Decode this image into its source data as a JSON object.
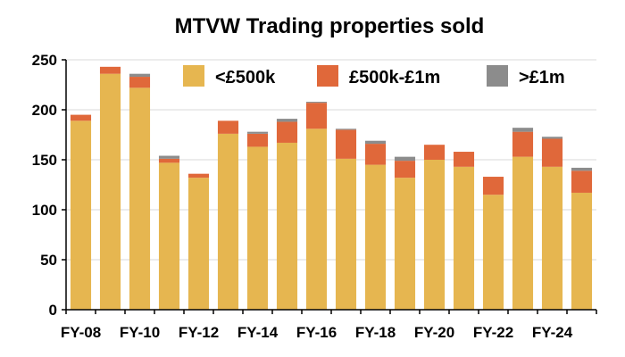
{
  "chart_data": {
    "type": "bar",
    "stacked": true,
    "title": "MTVW Trading properties sold",
    "xlabel": "",
    "ylabel": "",
    "ylim": [
      0,
      250
    ],
    "yticks": [
      0,
      50,
      100,
      150,
      200,
      250
    ],
    "grid": true,
    "legend_position": "top-right",
    "categories": [
      "FY-08",
      "FY-09",
      "FY-10",
      "FY-11",
      "FY-12",
      "FY-13",
      "FY-14",
      "FY-15",
      "FY-16",
      "FY-17",
      "FY-18",
      "FY-19",
      "FY-20",
      "FY-21",
      "FY-22",
      "FY-23",
      "FY-24",
      "FY-25"
    ],
    "xtick_labels": [
      "FY-08",
      "FY-10",
      "FY-12",
      "FY-14",
      "FY-16",
      "FY-18",
      "FY-20",
      "FY-22",
      "FY-24"
    ],
    "series": [
      {
        "name": "<£500k",
        "color": "#E6B650",
        "values": [
          189,
          236,
          222,
          147,
          132,
          176,
          163,
          167,
          181,
          151,
          145,
          132,
          150,
          143,
          115,
          153,
          143,
          117
        ]
      },
      {
        "name": "£500k-£1m",
        "color": "#E0683A",
        "values": [
          6,
          7,
          11,
          4,
          4,
          13,
          13,
          21,
          26,
          29,
          21,
          17,
          15,
          15,
          18,
          25,
          28,
          22
        ]
      },
      {
        "name": ">£1m",
        "color": "#8C8C8C",
        "values": [
          0,
          0,
          3,
          3,
          0,
          0,
          2,
          3,
          1,
          1,
          3,
          4,
          0,
          0,
          0,
          4,
          2,
          3
        ]
      }
    ]
  }
}
